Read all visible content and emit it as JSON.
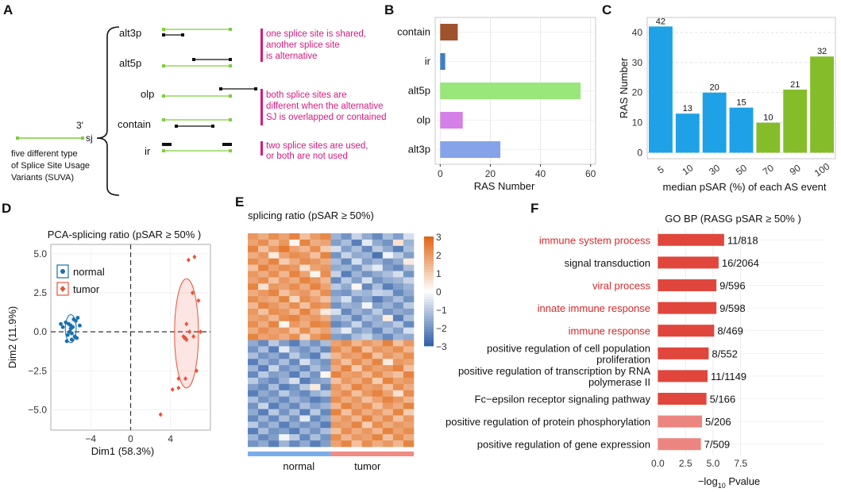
{
  "panel_letters": [
    "A",
    "B",
    "C",
    "D",
    "E",
    "F"
  ],
  "panelA": {
    "sj_label": "sj",
    "three_prime_label": "3'",
    "left_text": [
      "five different type",
      "of Splice Site Usage",
      "Variants (SUVA)"
    ],
    "types": [
      "alt3p",
      "alt5p",
      "olp",
      "contain",
      "ir"
    ],
    "notes": [
      [
        "one splice site is shared,",
        "another splice site",
        "is alternative"
      ],
      [
        "both splice sites are",
        "different when the alternative",
        "SJ is overlapped or contained"
      ],
      [
        "two splice sites are used,",
        "or both are not used"
      ]
    ],
    "colors": {
      "green": "#7ccf3a",
      "magenta": "#d6197e"
    }
  },
  "chart_data": [
    {
      "id": "B",
      "type": "bar",
      "orientation": "horizontal",
      "categories": [
        "contain",
        "ir",
        "alt5p",
        "olp",
        "alt3p"
      ],
      "values": [
        7,
        2,
        56,
        9,
        24
      ],
      "colors": [
        "#a0522d",
        "#3f7fbf",
        "#99e67a",
        "#d580e8",
        "#86a3ea"
      ],
      "xlabel": "RAS Number",
      "xlim": [
        -2,
        62
      ],
      "xticks": [
        0,
        20,
        40,
        60
      ]
    },
    {
      "id": "C",
      "type": "bar",
      "categories": [
        "5",
        "10",
        "30",
        "50",
        "70",
        "90",
        "100"
      ],
      "values": [
        42,
        13,
        20,
        15,
        10,
        21,
        32
      ],
      "colors": [
        "#1ea1e6",
        "#1ea1e6",
        "#1ea1e6",
        "#1ea1e6",
        "#85bd2a",
        "#85bd2a",
        "#85bd2a"
      ],
      "xlabel": "median pSAR (%) of each AS event",
      "ylabel": "RAS Number",
      "ylim": [
        -2,
        45
      ],
      "yticks": [
        0,
        10,
        20,
        30,
        40
      ]
    },
    {
      "id": "D",
      "type": "scatter",
      "title": "PCA-splicing ratio (pSAR ≥ 50% )",
      "xlabel": "Dim1 (58.3%)",
      "ylabel": "Dim2 (11.9%)",
      "xlim": [
        -8,
        8
      ],
      "ylim": [
        -6.3,
        5.6
      ],
      "xticks": [
        -4,
        0,
        4
      ],
      "yticks": [
        -5.0,
        -2.5,
        0.0,
        2.5,
        5.0
      ],
      "ytick_labels": [
        "−5.0",
        "−2.5",
        "0.0",
        "2.5",
        "5.0"
      ],
      "xtick_labels": [
        "−4",
        "0",
        "4"
      ],
      "legend": [
        "normal",
        "tumor"
      ],
      "series": [
        {
          "name": "normal",
          "color": "#1a6faf",
          "shape": "circle",
          "x": [
            -7.0,
            -6.8,
            -6.5,
            -6.2,
            -6.0,
            -6.0,
            -5.8,
            -5.7,
            -5.5,
            -5.3,
            -5.1,
            -6.3,
            -6.1,
            -5.9,
            -5.6,
            -5.4,
            -6.4,
            -5.9
          ],
          "y": [
            0.5,
            0.3,
            0.6,
            0.5,
            0.4,
            0.2,
            0.3,
            0.8,
            0.7,
            0.9,
            0.4,
            -0.2,
            0.0,
            -0.1,
            -0.3,
            -0.4,
            -0.6,
            -0.5
          ],
          "ellipse": {
            "cx": -6.0,
            "cy": 0.2,
            "rx": 0.55,
            "ry": 0.9
          }
        },
        {
          "name": "tumor",
          "color": "#e8533c",
          "shape": "diamond",
          "x": [
            5.8,
            6.4,
            6.2,
            6.8,
            5.6,
            5.9,
            7.0,
            6.3,
            5.3,
            5.4,
            5.5,
            5.6,
            6.6,
            4.8,
            5.5,
            4.8,
            4.2,
            3.0
          ],
          "y": [
            4.6,
            4.8,
            2.5,
            2.0,
            0.5,
            0.0,
            0.0,
            -0.3,
            -0.3,
            -0.4,
            -0.4,
            -0.5,
            -2.5,
            -3.0,
            -3.0,
            -3.6,
            -3.7,
            -5.3
          ],
          "ellipse": {
            "cx": 5.6,
            "cy": -0.1,
            "rx": 1.2,
            "ry": 3.5
          }
        }
      ]
    },
    {
      "id": "E",
      "type": "heatmap",
      "title": "splicing ratio (pSAR ≥ 50%)",
      "rows": 34,
      "cols": 16,
      "group_labels": [
        "normal",
        "tumor"
      ],
      "group_colors": [
        "#7aaee8",
        "#f08c84"
      ],
      "color_scale": {
        "min": -3,
        "max": 3,
        "low": "#2e5fa7",
        "mid": "#ffffff",
        "high": "#e06512"
      },
      "colorbar_ticks": [
        3,
        2,
        1,
        0,
        -1,
        -2,
        -3
      ],
      "colorbar_tick_labels": [
        "3",
        "2",
        "1",
        "0",
        "−1",
        "−2",
        "−3"
      ],
      "values": [
        [
          2.0,
          1.6,
          2.2,
          1.8,
          2.4,
          1.2,
          1.9,
          2.3,
          -1.4,
          -2.0,
          -0.8,
          -1.6,
          -2.2,
          -1.2,
          -1.8,
          -0.6
        ],
        [
          1.8,
          2.2,
          1.4,
          2.0,
          0.2,
          2.4,
          1.6,
          1.8,
          -1.8,
          -1.2,
          -2.4,
          -0.4,
          -1.6,
          -2.0,
          0.6,
          -1.4
        ],
        [
          2.4,
          1.2,
          2.0,
          2.6,
          1.8,
          1.4,
          2.2,
          1.0,
          -0.6,
          -1.8,
          -1.2,
          -2.2,
          -1.0,
          -1.6,
          -2.4,
          -1.2
        ],
        [
          1.6,
          2.0,
          0.4,
          1.8,
          2.2,
          2.0,
          1.2,
          2.4,
          -2.0,
          -0.8,
          -1.6,
          -1.4,
          -2.6,
          -0.2,
          -1.0,
          -1.8
        ],
        [
          2.2,
          1.8,
          2.4,
          1.0,
          1.6,
          2.2,
          2.0,
          1.6,
          -1.2,
          -2.2,
          -0.6,
          -1.8,
          -1.4,
          -2.0,
          -1.6,
          0.4
        ],
        [
          1.2,
          2.4,
          1.8,
          2.2,
          2.0,
          0.6,
          1.8,
          2.0,
          -1.6,
          -1.4,
          -2.0,
          -1.0,
          -0.4,
          -1.8,
          -2.2,
          -1.2
        ],
        [
          2.0,
          1.6,
          2.2,
          1.4,
          2.4,
          1.8,
          0.2,
          2.2,
          -0.8,
          -2.4,
          -1.4,
          -2.0,
          -1.6,
          -1.2,
          -0.6,
          -2.0
        ],
        [
          1.8,
          2.2,
          1.2,
          2.0,
          1.6,
          2.4,
          2.0,
          1.4,
          -2.2,
          -1.0,
          -1.8,
          -0.6,
          -2.0,
          -1.6,
          -1.4,
          -0.8
        ],
        [
          2.4,
          0.6,
          2.0,
          1.8,
          2.2,
          1.6,
          2.4,
          1.8,
          -1.0,
          -1.6,
          0.2,
          -2.2,
          -1.2,
          -2.4,
          -1.8,
          -1.4
        ],
        [
          1.6,
          2.0,
          2.4,
          1.2,
          1.8,
          2.0,
          1.4,
          2.2,
          -1.8,
          -2.0,
          -1.2,
          -1.4,
          -0.8,
          -1.0,
          -2.2,
          -1.6
        ],
        [
          2.2,
          1.8,
          1.6,
          2.4,
          0.8,
          2.2,
          1.8,
          1.2,
          -1.4,
          -0.6,
          -2.0,
          -1.6,
          -2.4,
          -1.8,
          -1.2,
          -2.0
        ],
        [
          1.4,
          2.4,
          2.0,
          1.6,
          2.2,
          1.2,
          2.2,
          2.0,
          -2.0,
          -1.4,
          -1.6,
          -0.2,
          -1.8,
          -1.4,
          -2.0,
          -1.0
        ],
        [
          2.0,
          1.2,
          2.2,
          2.0,
          1.4,
          2.4,
          1.6,
          0.4,
          -0.6,
          -2.2,
          -1.4,
          -1.8,
          -1.0,
          -2.0,
          -1.6,
          -1.8
        ],
        [
          1.8,
          2.0,
          1.4,
          2.2,
          2.4,
          1.8,
          2.0,
          1.6,
          -1.6,
          -1.2,
          -2.2,
          -1.2,
          -1.6,
          0.4,
          -2.4,
          -1.2
        ],
        [
          2.2,
          1.6,
          2.4,
          0.2,
          2.0,
          1.6,
          2.4,
          2.2,
          -2.2,
          -1.8,
          -0.8,
          -2.0,
          -1.4,
          -1.6,
          -1.0,
          -2.2
        ],
        [
          1.6,
          2.2,
          1.8,
          2.0,
          1.2,
          2.2,
          1.4,
          1.8,
          -1.2,
          -0.4,
          -1.8,
          -1.4,
          -2.2,
          -1.2,
          -1.8,
          -0.6
        ],
        [
          2.4,
          1.8,
          2.0,
          1.6,
          2.2,
          0.8,
          2.0,
          2.4,
          -1.8,
          -2.0,
          -1.2,
          -0.8,
          -1.6,
          -2.2,
          -1.4,
          -1.6
        ],
        [
          -1.6,
          -2.2,
          -1.0,
          -1.8,
          -2.4,
          -1.4,
          -2.0,
          -1.2,
          1.8,
          2.2,
          1.4,
          2.0,
          1.6,
          2.4,
          1.2,
          2.0
        ],
        [
          -2.0,
          -1.2,
          -2.4,
          -0.4,
          -1.6,
          -2.0,
          -1.4,
          -2.2,
          2.2,
          1.6,
          2.4,
          1.2,
          2.0,
          1.8,
          2.2,
          1.4
        ],
        [
          -1.2,
          -2.0,
          -1.6,
          -2.2,
          -1.0,
          -1.8,
          -2.4,
          -0.8,
          1.4,
          2.0,
          1.8,
          2.4,
          1.2,
          2.0,
          1.6,
          2.2
        ],
        [
          -2.4,
          -1.4,
          -2.0,
          -1.2,
          -2.2,
          -0.6,
          -1.6,
          -2.0,
          2.0,
          1.2,
          2.2,
          1.6,
          2.4,
          0.4,
          2.0,
          1.8
        ],
        [
          -1.4,
          -2.4,
          -0.8,
          -2.0,
          -1.6,
          -2.2,
          -1.2,
          -1.8,
          1.6,
          2.4,
          1.0,
          2.2,
          1.8,
          2.0,
          2.4,
          1.2
        ],
        [
          -2.2,
          -1.0,
          -1.8,
          -1.6,
          -2.4,
          -1.2,
          -2.0,
          0.2,
          2.4,
          1.8,
          2.0,
          1.4,
          2.2,
          1.6,
          1.2,
          2.4
        ],
        [
          -1.0,
          -1.8,
          -2.2,
          -1.4,
          -0.6,
          -2.4,
          -1.8,
          -1.6,
          1.2,
          2.0,
          1.6,
          2.2,
          1.0,
          2.4,
          1.8,
          2.0
        ],
        [
          -1.8,
          -2.2,
          -1.2,
          -2.4,
          -2.0,
          -1.0,
          0.4,
          -2.2,
          2.0,
          1.4,
          2.4,
          1.8,
          2.0,
          1.2,
          2.2,
          1.6
        ],
        [
          -2.4,
          -1.6,
          -2.0,
          -1.0,
          -1.8,
          -2.2,
          -1.4,
          -1.0,
          1.8,
          2.2,
          1.2,
          2.0,
          2.4,
          1.8,
          0.6,
          2.2
        ],
        [
          -1.2,
          -2.0,
          -1.6,
          -2.2,
          -1.4,
          -1.8,
          -2.4,
          -2.0,
          2.2,
          1.6,
          2.0,
          1.2,
          1.8,
          2.4,
          2.0,
          1.4
        ],
        [
          -2.0,
          -0.8,
          -2.4,
          -1.6,
          -2.2,
          -1.2,
          -1.8,
          -1.4,
          1.4,
          2.4,
          1.8,
          2.2,
          1.2,
          2.0,
          1.6,
          2.4
        ],
        [
          -1.6,
          -2.4,
          -1.0,
          -2.0,
          -1.2,
          -2.4,
          -1.0,
          -2.2,
          2.4,
          1.2,
          2.2,
          1.6,
          2.0,
          1.4,
          2.4,
          1.0
        ],
        [
          -2.2,
          -1.4,
          -2.2,
          -1.2,
          -2.0,
          -0.4,
          -2.2,
          -1.6,
          1.6,
          2.0,
          1.4,
          2.4,
          1.6,
          2.2,
          1.2,
          2.0
        ],
        [
          -1.0,
          -2.0,
          -1.4,
          -2.4,
          -1.6,
          -2.0,
          -1.6,
          -2.4,
          2.0,
          1.8,
          2.4,
          1.0,
          2.2,
          1.6,
          2.0,
          1.8
        ],
        [
          -2.4,
          -1.2,
          -2.0,
          -1.8,
          -2.4,
          -1.4,
          -2.0,
          -1.2,
          1.2,
          2.2,
          1.6,
          2.0,
          1.4,
          2.4,
          1.8,
          2.2
        ],
        [
          -1.4,
          -2.2,
          -1.8,
          -0.2,
          -1.0,
          -2.2,
          -1.2,
          -2.0,
          2.2,
          1.4,
          2.0,
          1.8,
          2.4,
          1.2,
          2.2,
          1.6
        ],
        [
          -2.0,
          -1.6,
          -2.4,
          -1.4,
          -2.2,
          -1.6,
          -2.4,
          -1.8,
          1.8,
          2.4,
          1.2,
          2.2,
          1.6,
          2.0,
          1.4,
          2.4
        ]
      ]
    },
    {
      "id": "F",
      "type": "bar",
      "orientation": "horizontal",
      "title": "GO BP (RASG pSAR ≥ 50% )",
      "categories": [
        [
          "immune system process"
        ],
        [
          "signal transduction"
        ],
        [
          "viral process"
        ],
        [
          "innate immune response"
        ],
        [
          "immune response"
        ],
        [
          "positive regulation of cell population",
          "proliferation"
        ],
        [
          "positive regulation of transcription by RNA",
          "polymerase II"
        ],
        [
          "Fc−epsilon receptor signaling pathway"
        ],
        [
          "positive regulation of protein phosphorylation"
        ],
        [
          "positive regulation of gene expression"
        ]
      ],
      "highlight": [
        true,
        false,
        true,
        true,
        true,
        false,
        false,
        false,
        false,
        false
      ],
      "values": [
        6.0,
        5.5,
        5.3,
        5.3,
        5.1,
        4.6,
        4.5,
        4.4,
        4.0,
        3.9
      ],
      "bar_labels": [
        "11/818",
        "16/2064",
        "9/596",
        "9/598",
        "8/469",
        "8/552",
        "11/1149",
        "5/166",
        "5/206",
        "7/509"
      ],
      "bar_colors": [
        "#e0463c",
        "#e0463c",
        "#e0463c",
        "#e0463c",
        "#e0463c",
        "#e0463c",
        "#e0463c",
        "#e0463c",
        "#ec8580",
        "#ec8580"
      ],
      "xlabel_main": "−log",
      "xlabel_sub": "10",
      "xlabel_tail": " Pvalue",
      "xticks": [
        0,
        2.5,
        5.0,
        7.5
      ],
      "xtick_labels": [
        "0.0",
        "2.5",
        "5.0",
        "7.5"
      ],
      "xlim": [
        -0.1,
        8.6
      ]
    }
  ]
}
